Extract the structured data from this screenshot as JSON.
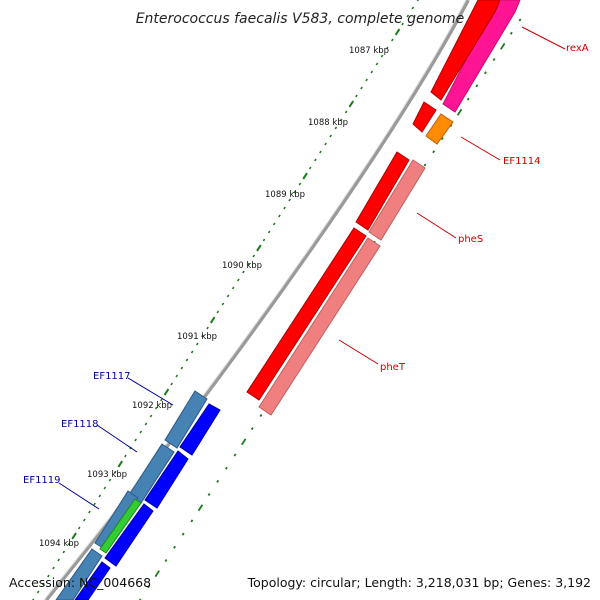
{
  "title": "Enterococcus faecalis V583, complete genome",
  "footer": {
    "accession": "Accession: NC_004668",
    "topology": "Topology: circular; Length: 3,218,031 bp; Genes: 3,192"
  },
  "ticks": [
    "1087 kbp",
    "1088 kbp",
    "1089 kbp",
    "1090 kbp",
    "1091 kbp",
    "1092 kbp",
    "1093 kbp",
    "1094 kbp"
  ],
  "labels": {
    "rexA": "rexA",
    "EF1114": "EF1114",
    "pheS": "pheS",
    "pheT": "pheT",
    "EF1117": "EF1117",
    "EF1118": "EF1118",
    "EF1119": "EF1119"
  },
  "colors": {
    "forward_label": "#cc0000",
    "reverse_label": "#000099",
    "red": "#ff0000",
    "pink": "#f08080",
    "magenta": "#ff1493",
    "orange": "#ff8c00",
    "steel": "#4682b4",
    "blue": "#0000ff",
    "green": "#33cc33",
    "tick": "#1a7a1a",
    "backbone": "#808080"
  }
}
